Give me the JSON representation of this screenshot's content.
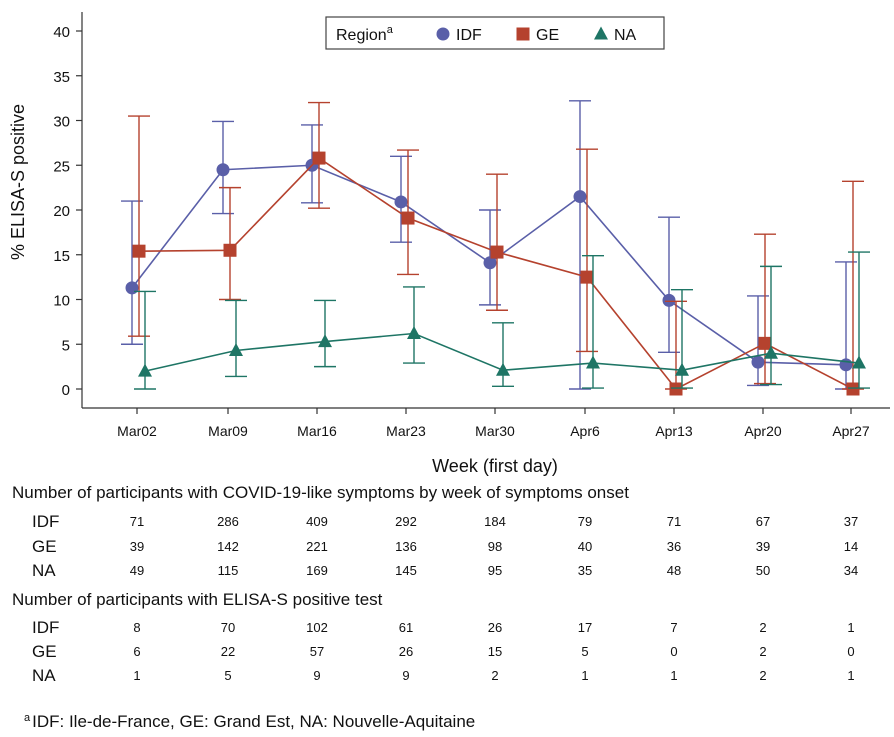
{
  "chart_data": {
    "type": "line",
    "xlabel": "Week (first day)",
    "ylabel": "% ELISA-S positive",
    "categories": [
      "Mar02",
      "Mar09",
      "Mar16",
      "Mar23",
      "Mar30",
      "Apr6",
      "Apr13",
      "Apr20",
      "Apr27"
    ],
    "ylim": [
      0,
      40
    ],
    "yticks": [
      0,
      5,
      10,
      15,
      20,
      25,
      30,
      35,
      40
    ],
    "legend": {
      "title": "Region",
      "title_sup": "a",
      "placement": "top-center"
    },
    "series": [
      {
        "name": "IDF",
        "color": "#5a5fa8",
        "marker": "circle",
        "values": [
          11.3,
          24.5,
          25.0,
          20.9,
          14.1,
          21.5,
          9.9,
          3.0,
          2.7
        ],
        "ci_low": [
          5.0,
          19.6,
          20.8,
          16.4,
          9.4,
          0,
          4.1,
          0.4,
          0
        ],
        "ci_high": [
          21.0,
          29.9,
          29.5,
          26.0,
          20.0,
          32.2,
          19.2,
          10.4,
          14.2
        ]
      },
      {
        "name": "GE",
        "color": "#b5422e",
        "marker": "square",
        "values": [
          15.4,
          15.5,
          25.8,
          19.1,
          15.3,
          12.5,
          0,
          5.1,
          0
        ],
        "ci_low": [
          5.9,
          10.0,
          20.2,
          12.8,
          8.8,
          4.2,
          0,
          0.6,
          0
        ],
        "ci_high": [
          30.5,
          22.5,
          32.0,
          26.7,
          24.0,
          26.8,
          9.8,
          17.3,
          23.2
        ]
      },
      {
        "name": "NA",
        "color": "#1e7565",
        "marker": "triangle",
        "values": [
          2.0,
          4.3,
          5.3,
          6.2,
          2.1,
          2.9,
          2.1,
          4.0,
          2.9
        ],
        "ci_low": [
          0,
          1.4,
          2.5,
          2.9,
          0.3,
          0.1,
          0.1,
          0.5,
          0.1
        ],
        "ci_high": [
          10.9,
          9.9,
          9.9,
          11.4,
          7.4,
          14.9,
          11.1,
          13.7,
          15.3
        ]
      }
    ]
  },
  "table1": {
    "title": "Number of participants with COVID-19-like symptoms by week of symptoms onset",
    "rows": [
      {
        "label": "IDF",
        "values": [
          "71",
          "286",
          "409",
          "292",
          "184",
          "79",
          "71",
          "67",
          "37"
        ]
      },
      {
        "label": "GE",
        "values": [
          "39",
          "142",
          "221",
          "136",
          "98",
          "40",
          "36",
          "39",
          "14"
        ]
      },
      {
        "label": "NA",
        "values": [
          "49",
          "115",
          "169",
          "145",
          "95",
          "35",
          "48",
          "50",
          "34"
        ]
      }
    ]
  },
  "table2": {
    "title": "Number of participants with ELISA-S positive test",
    "rows": [
      {
        "label": "IDF",
        "values": [
          "8",
          "70",
          "102",
          "61",
          "26",
          "17",
          "7",
          "2",
          "1"
        ]
      },
      {
        "label": "GE",
        "values": [
          "6",
          "22",
          "57",
          "26",
          "15",
          "5",
          "0",
          "2",
          "0"
        ]
      },
      {
        "label": "NA",
        "values": [
          "1",
          "5",
          "9",
          "9",
          "2",
          "1",
          "1",
          "2",
          "1"
        ]
      }
    ]
  },
  "footnote": {
    "marker": "a",
    "text": "IDF: Ile-de-France, GE: Grand Est, NA: Nouvelle-Aquitaine"
  }
}
